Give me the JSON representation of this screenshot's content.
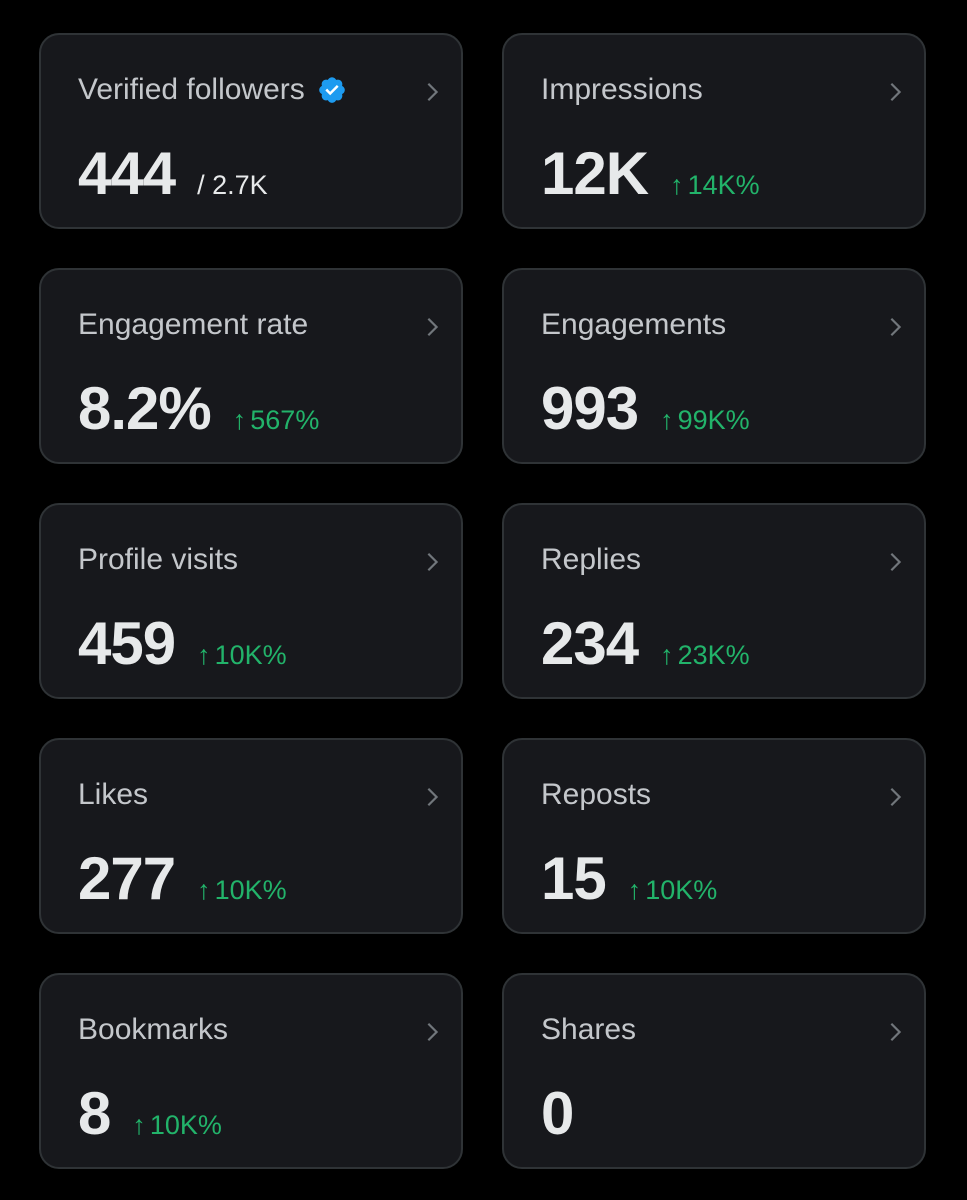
{
  "cards": [
    {
      "title": "Verified followers",
      "value": "444",
      "sub": "/ 2.7K",
      "delta": "",
      "verified": true
    },
    {
      "title": "Impressions",
      "value": "12K",
      "sub": "",
      "delta": "14K%"
    },
    {
      "title": "Engagement rate",
      "value": "8.2%",
      "sub": "",
      "delta": "567%"
    },
    {
      "title": "Engagements",
      "value": "993",
      "sub": "",
      "delta": "99K%"
    },
    {
      "title": "Profile visits",
      "value": "459",
      "sub": "",
      "delta": "10K%"
    },
    {
      "title": "Replies",
      "value": "234",
      "sub": "",
      "delta": "23K%"
    },
    {
      "title": "Likes",
      "value": "277",
      "sub": "",
      "delta": "10K%"
    },
    {
      "title": "Reposts",
      "value": "15",
      "sub": "",
      "delta": "10K%"
    },
    {
      "title": "Bookmarks",
      "value": "8",
      "sub": "",
      "delta": "10K%"
    },
    {
      "title": "Shares",
      "value": "0",
      "sub": "",
      "delta": ""
    }
  ],
  "delta_arrow": "↑",
  "colors": {
    "background": "#000000",
    "card": "#17181c",
    "border": "#2f3336",
    "text": "#e7e9ea",
    "muted": "#c4c7cb",
    "positive": "#22b36a",
    "verified": "#1d9bf0"
  },
  "icons": {
    "chevron": "chevron-right-icon",
    "verified": "verified-badge-icon",
    "arrow": "arrow-up-icon"
  }
}
